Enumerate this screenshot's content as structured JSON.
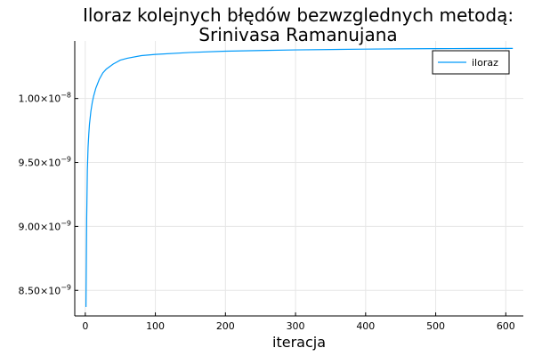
{
  "chart_data": {
    "type": "line",
    "title": [
      "Iloraz kolejnych błędów bezwzglednych metodą:",
      "Srinivasa Ramanujana"
    ],
    "xlabel": "iteracja",
    "ylabel": "",
    "xlim": [
      -15,
      625
    ],
    "ylim": [
      8.3e-09,
      1.045e-08
    ],
    "xticks": [
      {
        "value": 0,
        "label": "0"
      },
      {
        "value": 100,
        "label": "100"
      },
      {
        "value": 200,
        "label": "200"
      },
      {
        "value": 300,
        "label": "300"
      },
      {
        "value": 400,
        "label": "400"
      },
      {
        "value": 500,
        "label": "500"
      },
      {
        "value": 600,
        "label": "600"
      }
    ],
    "yticks": [
      {
        "value": 8.5e-09,
        "mantissa": "8.50×10",
        "exp": "−9"
      },
      {
        "value": 9e-09,
        "mantissa": "9.00×10",
        "exp": "−9"
      },
      {
        "value": 9.5e-09,
        "mantissa": "9.50×10",
        "exp": "−9"
      },
      {
        "value": 1e-08,
        "mantissa": "1.00×10",
        "exp": "−8"
      }
    ],
    "grid": true,
    "legend_position": "top-right",
    "series": [
      {
        "name": "iloraz",
        "color": "#009AFA",
        "x": [
          1,
          2,
          3,
          4,
          5,
          6,
          8,
          10,
          12,
          15,
          20,
          25,
          30,
          40,
          50,
          60,
          80,
          100,
          150,
          200,
          250,
          300,
          350,
          400,
          450,
          500,
          550,
          610
        ],
        "y": [
          8.37e-09,
          9.06e-09,
          9.44e-09,
          9.62e-09,
          9.72e-09,
          9.8e-09,
          9.9e-09,
          9.97e-09,
          1.002e-08,
          1.008e-08,
          1.015e-08,
          1.02e-08,
          1.023e-08,
          1.027e-08,
          1.03e-08,
          1.0315e-08,
          1.0335e-08,
          1.0345e-08,
          1.036e-08,
          1.037e-08,
          1.0375e-08,
          1.038e-08,
          1.0383e-08,
          1.0386e-08,
          1.0388e-08,
          1.039e-08,
          1.0391e-08,
          1.0392e-08
        ]
      }
    ]
  }
}
